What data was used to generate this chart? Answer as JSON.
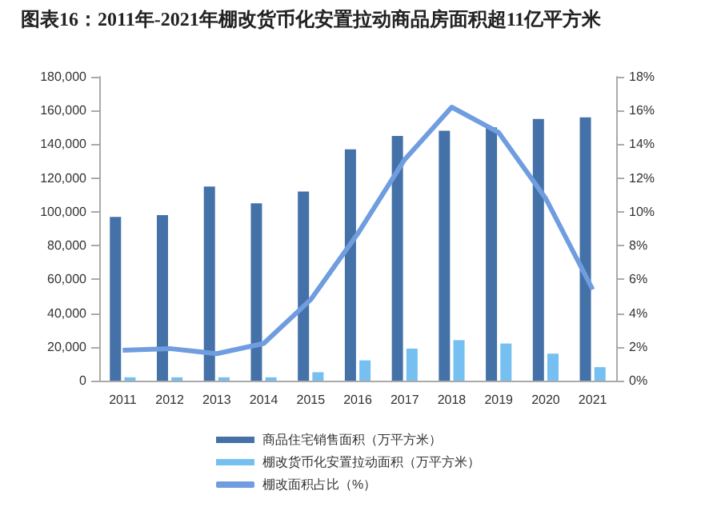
{
  "chart_data": {
    "type": "bar",
    "title": "图表16：2011年-2021年棚改货币化安置拉动商品房面积超11亿平方米",
    "categories": [
      "2011",
      "2012",
      "2013",
      "2014",
      "2015",
      "2016",
      "2017",
      "2018",
      "2019",
      "2020",
      "2021"
    ],
    "series": [
      {
        "name": "商品住宅销售面积（万平方米）",
        "color": "#4472a8",
        "values": [
          97000,
          98000,
          115000,
          105000,
          112000,
          137000,
          145000,
          148000,
          150000,
          155000,
          156000
        ]
      },
      {
        "name": "棚改货币化安置拉动面积（万平方米）",
        "color": "#75c0f0",
        "values": [
          2000,
          2000,
          2000,
          2000,
          5000,
          12000,
          19000,
          24000,
          22000,
          16000,
          8000
        ]
      },
      {
        "name": "棚改面积占比（%）",
        "type": "line",
        "axis": "y2",
        "color": "#6f9ddf",
        "values": [
          1.8,
          1.9,
          1.6,
          2.2,
          4.8,
          8.7,
          13.1,
          16.2,
          14.7,
          10.8,
          5.4
        ]
      }
    ],
    "ylim": [
      0,
      180000
    ],
    "yticks": [
      0,
      {
        "value": 20000,
        "label": "20,000"
      },
      {
        "value": 40000,
        "label": "40,000"
      },
      {
        "value": 60000,
        "label": "60,000"
      },
      {
        "value": 80000,
        "label": "80,000"
      },
      {
        "value": 100000,
        "label": "100,000"
      },
      {
        "value": 120000,
        "label": "120,000"
      },
      {
        "value": 140000,
        "label": "140,000"
      },
      {
        "value": 160000,
        "label": "160,000"
      },
      {
        "value": 180000,
        "label": "180,000"
      }
    ],
    "y2lim": [
      0,
      18
    ],
    "y2ticks": [
      {
        "value": 0,
        "label": "0%"
      },
      {
        "value": 2,
        "label": "2%"
      },
      {
        "value": 4,
        "label": "4%"
      },
      {
        "value": 6,
        "label": "6%"
      },
      {
        "value": 8,
        "label": "8%"
      },
      {
        "value": 10,
        "label": "10%"
      },
      {
        "value": 12,
        "label": "12%"
      },
      {
        "value": 14,
        "label": "14%"
      },
      {
        "value": 16,
        "label": "16%"
      },
      {
        "value": 18,
        "label": "18%"
      }
    ],
    "legend": "bottom",
    "grid": false,
    "marker": "none"
  }
}
